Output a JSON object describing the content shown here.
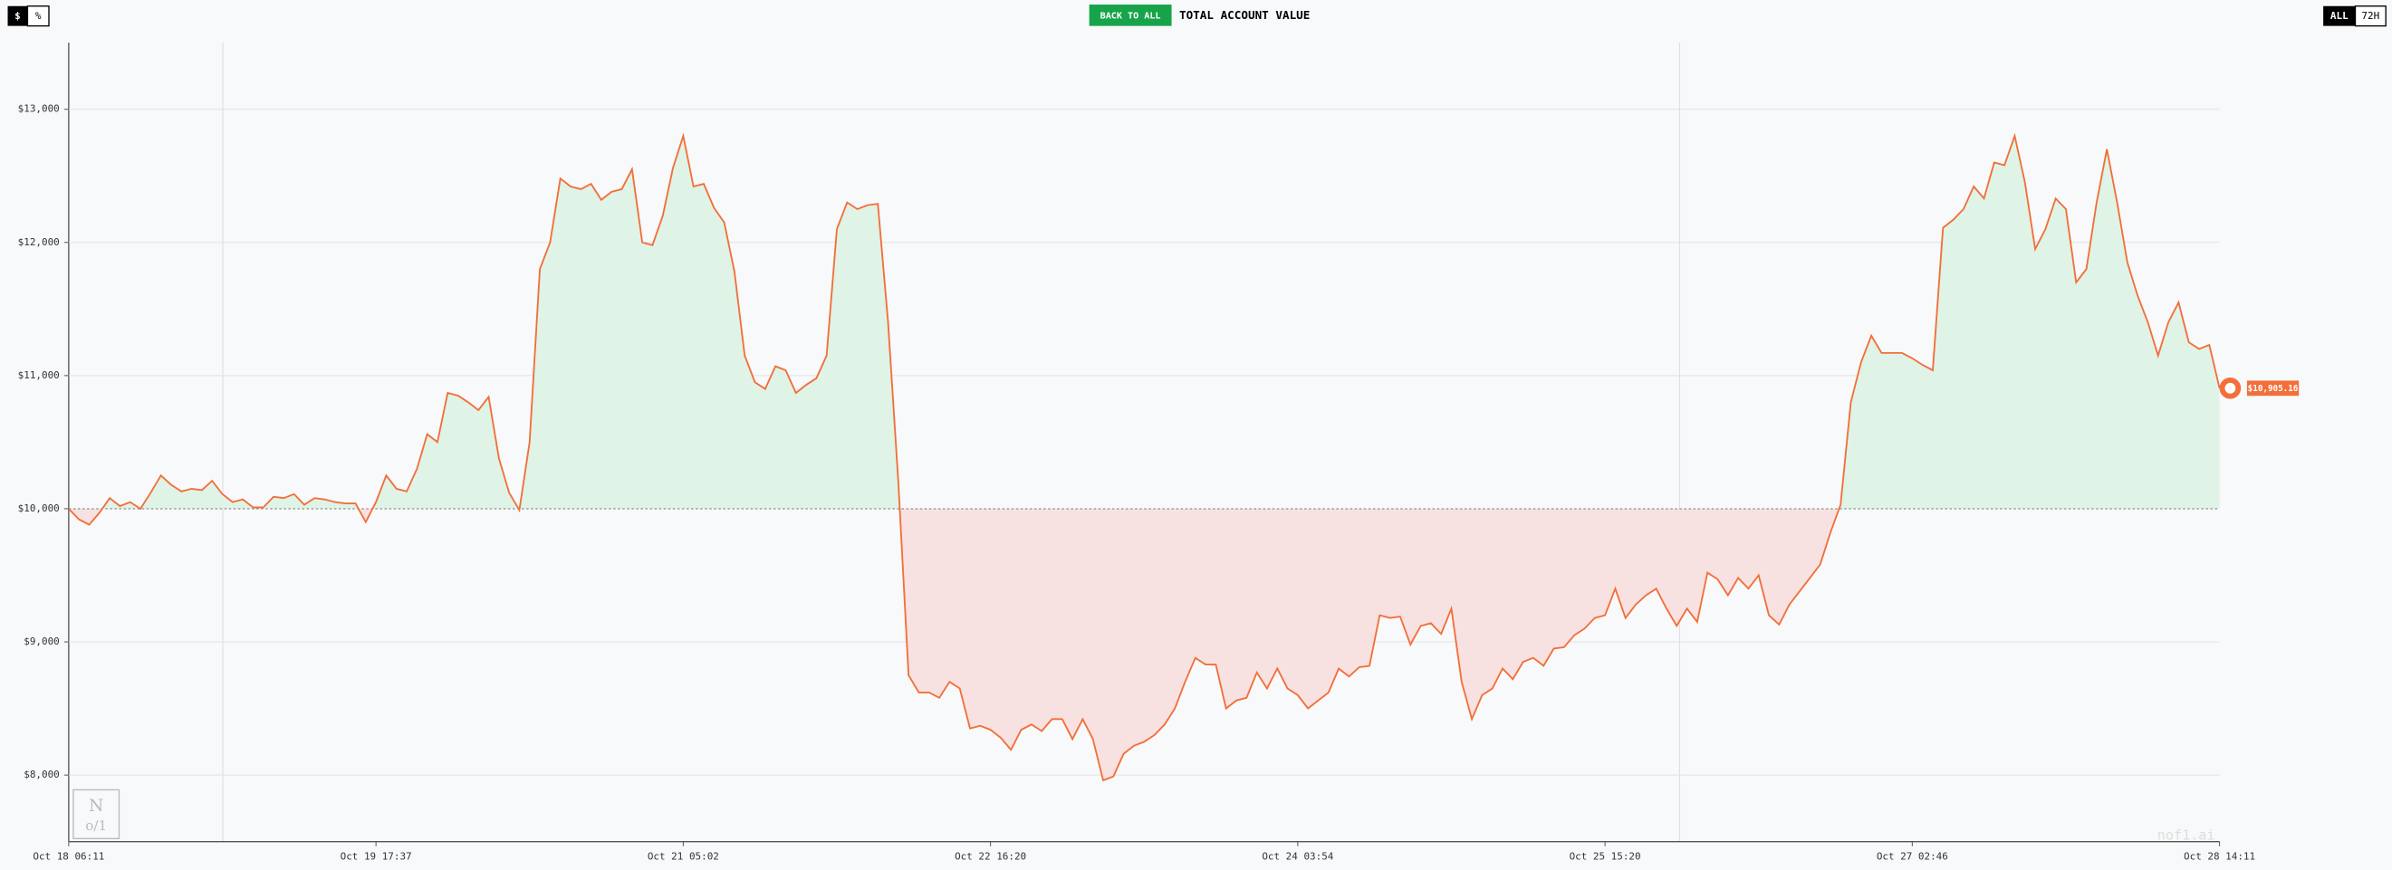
{
  "ui": {
    "currency_toggle": [
      "$",
      "%"
    ],
    "back_button": "BACK TO ALL",
    "heading": "TOTAL ACCOUNT VALUE",
    "range_toggle": [
      "ALL",
      "72H"
    ],
    "watermark": "nof1.ai"
  },
  "chart_data": {
    "type": "area-line",
    "categories": [
      "Oct 18 06:11",
      null,
      null,
      null,
      null,
      null,
      null,
      null,
      null,
      null,
      null,
      null,
      null,
      null,
      null,
      null,
      null,
      null,
      null,
      null,
      null,
      null,
      null,
      null,
      null,
      null,
      null,
      null,
      null,
      null,
      "Oct 19 17:37",
      null,
      null,
      null,
      null,
      null,
      null,
      null,
      null,
      null,
      null,
      null,
      null,
      null,
      null,
      null,
      null,
      null,
      null,
      null,
      null,
      null,
      null,
      null,
      null,
      null,
      null,
      null,
      null,
      null,
      "Oct 21 05:02",
      null,
      null,
      null,
      null,
      null,
      null,
      null,
      null,
      null,
      null,
      null,
      null,
      null,
      null,
      null,
      null,
      null,
      null,
      null,
      null,
      null,
      null,
      null,
      null,
      null,
      null,
      null,
      null,
      null,
      "Oct 22 16:20",
      null,
      null,
      null,
      null,
      null,
      null,
      null,
      null,
      null,
      null,
      null,
      null,
      null,
      null,
      null,
      null,
      null,
      null,
      null,
      null,
      null,
      null,
      null,
      null,
      null,
      null,
      null,
      null,
      null,
      "Oct 24 03:54",
      null,
      null,
      null,
      null,
      null,
      null,
      null,
      null,
      null,
      null,
      null,
      null,
      null,
      null,
      null,
      null,
      null,
      null,
      null,
      null,
      null,
      null,
      null,
      null,
      null,
      null,
      null,
      null,
      null,
      "Oct 25 15:20",
      null,
      null,
      null,
      null,
      null,
      null,
      null,
      null,
      null,
      null,
      null,
      null,
      null,
      null,
      null,
      null,
      null,
      null,
      null,
      null,
      null,
      null,
      null,
      null,
      null,
      null,
      null,
      null,
      null,
      "Oct 27 02:46",
      null,
      null,
      null,
      null,
      null,
      null,
      null,
      null,
      null,
      null,
      null,
      null,
      null,
      null,
      null,
      null,
      null,
      null,
      null,
      null,
      null,
      null,
      null,
      null,
      null,
      null,
      null,
      null,
      null,
      "Oct 28 14:11"
    ],
    "series": [
      {
        "name": "Account value",
        "color": "#f26f3a",
        "values": [
          10000,
          9920,
          9880,
          9970,
          10080,
          10020,
          10050,
          10000,
          10120,
          10250,
          10180,
          10130,
          10150,
          10140,
          10210,
          10110,
          10050,
          10070,
          10010,
          10010,
          10090,
          10080,
          10110,
          10030,
          10080,
          10070,
          10050,
          10040,
          10040,
          9900,
          10050,
          10250,
          10150,
          10130,
          10300,
          10560,
          10500,
          10870,
          10850,
          10800,
          10740,
          10840,
          10380,
          10120,
          9990,
          10500,
          11800,
          12000,
          12480,
          12420,
          12400,
          12440,
          12320,
          12380,
          12400,
          12550,
          12000,
          11980,
          12200,
          12560,
          12800,
          12420,
          12440,
          12260,
          12150,
          11780,
          11150,
          10950,
          10900,
          11070,
          11040,
          10870,
          10930,
          10980,
          11150,
          12100,
          12300,
          12250,
          12280,
          12290,
          11400,
          10200,
          8750,
          8620,
          8620,
          8580,
          8700,
          8650,
          8350,
          8370,
          8340,
          8280,
          8190,
          8340,
          8380,
          8330,
          8420,
          8420,
          8270,
          8420,
          8270,
          7960,
          7990,
          8160,
          8220,
          8250,
          8300,
          8380,
          8500,
          8700,
          8880,
          8830,
          8830,
          8500,
          8560,
          8580,
          8770,
          8650,
          8800,
          8650,
          8600,
          8500,
          8560,
          8620,
          8800,
          8740,
          8810,
          8820,
          9200,
          9180,
          9190,
          8980,
          9120,
          9140,
          9060,
          9250,
          8700,
          8420,
          8600,
          8650,
          8800,
          8720,
          8850,
          8880,
          8820,
          8950,
          8960,
          9050,
          9100,
          9180,
          9200,
          9400,
          9180,
          9280,
          9350,
          9400,
          9250,
          9120,
          9250,
          9150,
          9520,
          9470,
          9350,
          9480,
          9400,
          9500,
          9200,
          9130,
          9280,
          9380,
          9480,
          9580,
          9820,
          10030,
          10800,
          11100,
          11300,
          11170,
          11170,
          11170,
          11130,
          11080,
          11040,
          12110,
          12170,
          12250,
          12420,
          12330,
          12600,
          12580,
          12800,
          12450,
          11950,
          12100,
          12330,
          12250,
          11700,
          11800,
          12300,
          12700,
          12300,
          11850,
          11600,
          11400,
          11150,
          11400,
          11550,
          11250,
          11200,
          11230,
          10905.16
        ]
      }
    ],
    "last_label": "$10,905.16",
    "baseline": 10000,
    "above_color": "#dff3e6",
    "below_color": "#f8e1e1",
    "ylim": [
      7500,
      13500
    ],
    "yticks": [
      {
        "value": 8000,
        "label": "$8,000"
      },
      {
        "value": 9000,
        "label": "$9,000"
      },
      {
        "value": 10000,
        "label": "$10,000"
      },
      {
        "value": 11000,
        "label": "$11,000"
      },
      {
        "value": 12000,
        "label": "$12,000"
      },
      {
        "value": 13000,
        "label": "$13,000"
      }
    ],
    "grid": true
  }
}
